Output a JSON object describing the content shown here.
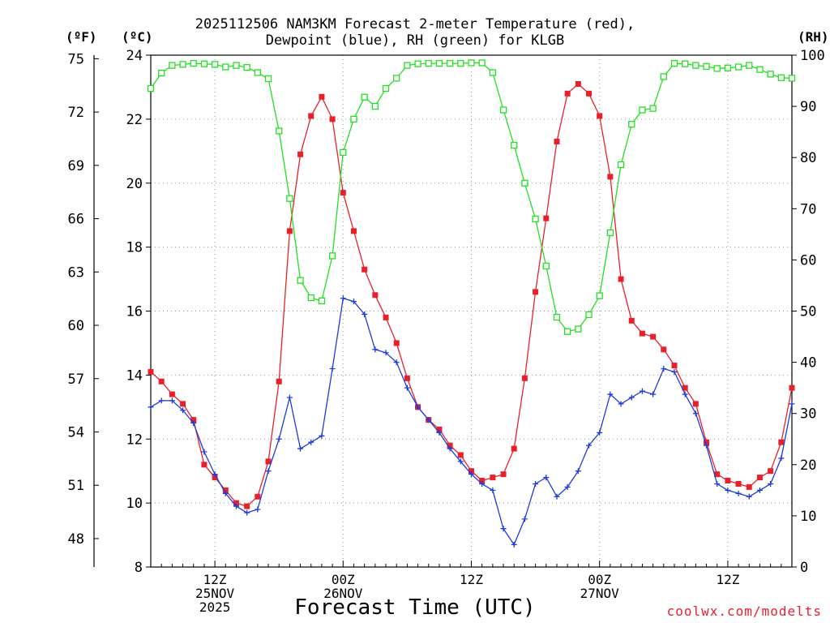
{
  "chart_data": {
    "type": "line",
    "title_line1": "2025112506 NAM3KM Forecast 2-meter Temperature (red),",
    "title_line2": "Dewpoint (blue), RH (green) for KLGB",
    "xlabel": "Forecast Time (UTC)",
    "left_unit_f": "(ºF)",
    "left_unit_c": "(ºC)",
    "right_unit": "(RH)",
    "credit": "coolwx.com/modelts",
    "x_range_hours": [
      0,
      60
    ],
    "celsius_axis": {
      "min": 8,
      "max": 24,
      "ticks": [
        8,
        10,
        12,
        14,
        16,
        18,
        20,
        22,
        24
      ]
    },
    "fahrenheit_ticks": [
      48,
      51,
      54,
      57,
      60,
      63,
      66,
      69,
      72,
      75
    ],
    "rh_axis": {
      "min": 0,
      "max": 100,
      "ticks": [
        0,
        10,
        20,
        30,
        40,
        50,
        60,
        70,
        80,
        90,
        100
      ]
    },
    "x_ticks": [
      {
        "hour": 6,
        "lines": [
          "12Z",
          "25NOV",
          "2025"
        ]
      },
      {
        "hour": 18,
        "lines": [
          "00Z",
          "26NOV"
        ]
      },
      {
        "hour": 30,
        "lines": [
          "12Z"
        ]
      },
      {
        "hour": 42,
        "lines": [
          "00Z",
          "27NOV"
        ]
      },
      {
        "hour": 54,
        "lines": [
          "12Z"
        ]
      }
    ],
    "series": [
      {
        "name": "Temperature",
        "color": "#e8202a",
        "axis": "celsius",
        "marker": "filled-square",
        "values": [
          14.1,
          13.8,
          13.4,
          13.1,
          12.6,
          11.2,
          10.8,
          10.4,
          10.0,
          9.9,
          10.2,
          11.3,
          13.8,
          18.5,
          20.9,
          22.1,
          22.7,
          22.0,
          19.7,
          18.5,
          17.3,
          16.5,
          15.8,
          15.0,
          13.9,
          13.0,
          12.6,
          12.3,
          11.8,
          11.5,
          11.0,
          10.7,
          10.8,
          10.9,
          11.7,
          13.9,
          16.6,
          18.9,
          21.3,
          22.8,
          23.1,
          22.8,
          22.1,
          20.2,
          17.0,
          15.7,
          15.3,
          15.2,
          14.8,
          14.3,
          13.6,
          13.1,
          11.9,
          10.9,
          10.7,
          10.6,
          10.5,
          10.8,
          11.0,
          11.9,
          13.6
        ]
      },
      {
        "name": "Dewpoint",
        "color": "#1e3cdc",
        "axis": "celsius",
        "marker": "plus",
        "values": [
          13.0,
          13.2,
          13.2,
          12.9,
          12.5,
          11.6,
          10.9,
          10.3,
          9.9,
          9.7,
          9.8,
          11.0,
          12.0,
          13.3,
          11.7,
          11.9,
          12.1,
          14.2,
          16.4,
          16.3,
          15.9,
          14.8,
          14.7,
          14.4,
          13.6,
          13.0,
          12.6,
          12.2,
          11.7,
          11.3,
          10.9,
          10.6,
          10.4,
          9.2,
          8.7,
          9.5,
          10.6,
          10.8,
          10.2,
          10.5,
          11.0,
          11.8,
          12.2,
          13.4,
          13.1,
          13.3,
          13.5,
          13.4,
          14.2,
          14.1,
          13.4,
          12.8,
          11.8,
          10.6,
          10.4,
          10.3,
          10.2,
          10.4,
          10.6,
          11.4,
          13.1
        ]
      },
      {
        "name": "RH",
        "color": "#22e022",
        "axis": "rh",
        "marker": "open-square",
        "values": [
          93.5,
          96.5,
          98,
          98.2,
          98.4,
          98.3,
          98.2,
          97.7,
          98,
          97.6,
          96.6,
          95.4,
          85.2,
          72,
          56,
          52.6,
          52,
          60.8,
          81,
          87.5,
          91.8,
          90,
          93.5,
          95.5,
          98,
          98.3,
          98.4,
          98.4,
          98.4,
          98.4,
          98.5,
          98.5,
          96.6,
          89.3,
          82.4,
          75,
          68,
          58.8,
          48.8,
          46,
          46.5,
          49.3,
          53,
          65.3,
          78.6,
          86.5,
          89.3,
          89.6,
          95.8,
          98.4,
          98.3,
          98,
          97.8,
          97.4,
          97.5,
          97.7,
          98,
          97.2,
          96.3,
          95.6,
          95.5
        ]
      }
    ]
  }
}
